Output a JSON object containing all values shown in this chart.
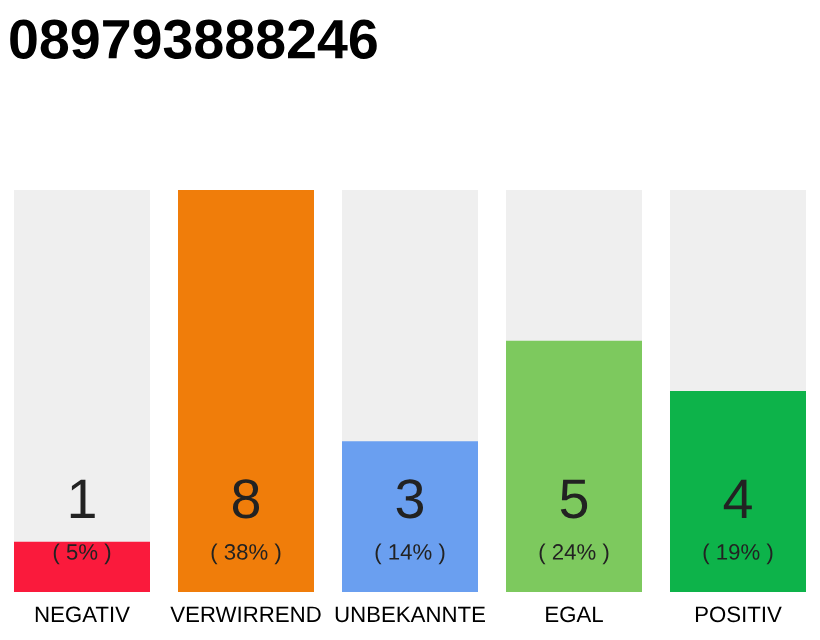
{
  "chart_data": {
    "type": "bar",
    "title": "089793888246",
    "categories": [
      "NEGATIV",
      "VERWIRREND",
      "UNBEKANNTE",
      "EGAL",
      "POSITIV"
    ],
    "values": [
      1,
      8,
      3,
      5,
      4
    ],
    "colors": [
      "#fa1a3c",
      "#f07d0a",
      "#6a9ff0",
      "#7dc95e",
      "#0db34a"
    ],
    "ylim": [
      0,
      8
    ],
    "data_labels": true,
    "annotations": [
      "( 5% )",
      "( 38% )",
      "( 14% )",
      "( 24% )",
      "( 19% )"
    ],
    "grid": false,
    "legend": false
  }
}
